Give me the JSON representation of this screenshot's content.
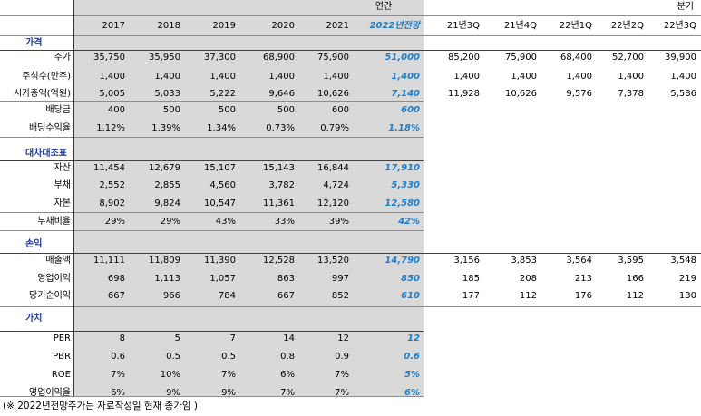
{
  "header": {
    "annual_label": "연간",
    "quarter_label": "분기",
    "years": [
      "2017",
      "2018",
      "2019",
      "2020",
      "2021",
      "2022년전망"
    ],
    "quarters": [
      "21년3Q",
      "21년4Q",
      "22년1Q",
      "22년2Q",
      "22년3Q"
    ]
  },
  "sections": [
    {
      "title": "가격",
      "rows": [
        {
          "label": "주가",
          "annual": [
            "35,750",
            "35,950",
            "37,300",
            "68,900",
            "75,900"
          ],
          "projection": "51,000",
          "quarterly": [
            "85,200",
            "75,900",
            "68,400",
            "52,700",
            "39,900"
          ]
        },
        {
          "label": "주식수(만주)",
          "annual": [
            "1,400",
            "1,400",
            "1,400",
            "1,400",
            "1,400"
          ],
          "projection": "1,400",
          "quarterly": [
            "1,400",
            "1,400",
            "1,400",
            "1,400",
            "1,400"
          ]
        },
        {
          "label": "시가총액(억원)",
          "annual": [
            "5,005",
            "5,033",
            "5,222",
            "9,646",
            "10,626"
          ],
          "projection": "7,140",
          "quarterly": [
            "11,928",
            "10,626",
            "9,576",
            "7,378",
            "5,586"
          ]
        },
        {
          "label": "배당금",
          "annual": [
            "400",
            "500",
            "500",
            "500",
            "600"
          ],
          "projection": "600",
          "quarterly": []
        },
        {
          "label": "배당수익율",
          "annual": [
            "1.12%",
            "1.39%",
            "1.34%",
            "0.73%",
            "0.79%"
          ],
          "projection": "1.18%",
          "quarterly": []
        }
      ]
    },
    {
      "title": "대차대조표",
      "rows": [
        {
          "label": "자산",
          "annual": [
            "11,454",
            "12,679",
            "15,107",
            "15,143",
            "16,844"
          ],
          "projection": "17,910",
          "quarterly": []
        },
        {
          "label": "부채",
          "annual": [
            "2,552",
            "2,855",
            "4,560",
            "3,782",
            "4,724"
          ],
          "projection": "5,330",
          "quarterly": []
        },
        {
          "label": "자본",
          "annual": [
            "8,902",
            "9,824",
            "10,547",
            "11,361",
            "12,120"
          ],
          "projection": "12,580",
          "quarterly": []
        },
        {
          "label": "부채비율",
          "annual": [
            "29%",
            "29%",
            "43%",
            "33%",
            "39%"
          ],
          "projection": "42%",
          "quarterly": []
        }
      ]
    },
    {
      "title": "손익",
      "rows": [
        {
          "label": "매출액",
          "annual": [
            "11,111",
            "11,809",
            "11,390",
            "12,528",
            "13,520"
          ],
          "projection": "14,790",
          "quarterly": [
            "3,156",
            "3,853",
            "3,564",
            "3,595",
            "3,548"
          ]
        },
        {
          "label": "영업이익",
          "annual": [
            "698",
            "1,113",
            "1,057",
            "863",
            "997"
          ],
          "projection": "850",
          "quarterly": [
            "185",
            "208",
            "213",
            "166",
            "219"
          ]
        },
        {
          "label": "당기순이익",
          "annual": [
            "667",
            "966",
            "784",
            "667",
            "852"
          ],
          "projection": "610",
          "quarterly": [
            "177",
            "112",
            "176",
            "112",
            "130"
          ]
        }
      ]
    },
    {
      "title": "가치",
      "rows": [
        {
          "label": "PER",
          "annual": [
            "8",
            "5",
            "7",
            "14",
            "12"
          ],
          "projection": "12",
          "quarterly": []
        },
        {
          "label": "PBR",
          "annual": [
            "0.6",
            "0.5",
            "0.5",
            "0.8",
            "0.9"
          ],
          "projection": "0.6",
          "quarterly": []
        },
        {
          "label": "ROE",
          "annual": [
            "7%",
            "10%",
            "7%",
            "6%",
            "7%"
          ],
          "projection": "5%",
          "quarterly": []
        },
        {
          "label": "영업이익율",
          "annual": [
            "6%",
            "9%",
            "9%",
            "7%",
            "7%"
          ],
          "projection": "6%",
          "quarterly": []
        }
      ]
    }
  ],
  "footnote": "(※ 2022년전망주가는 자료작성일 현재 종가임 )",
  "colors": {
    "projection": "#1f7ec8",
    "section_title": "#1f3c99",
    "shade": "#d9d9d9"
  }
}
